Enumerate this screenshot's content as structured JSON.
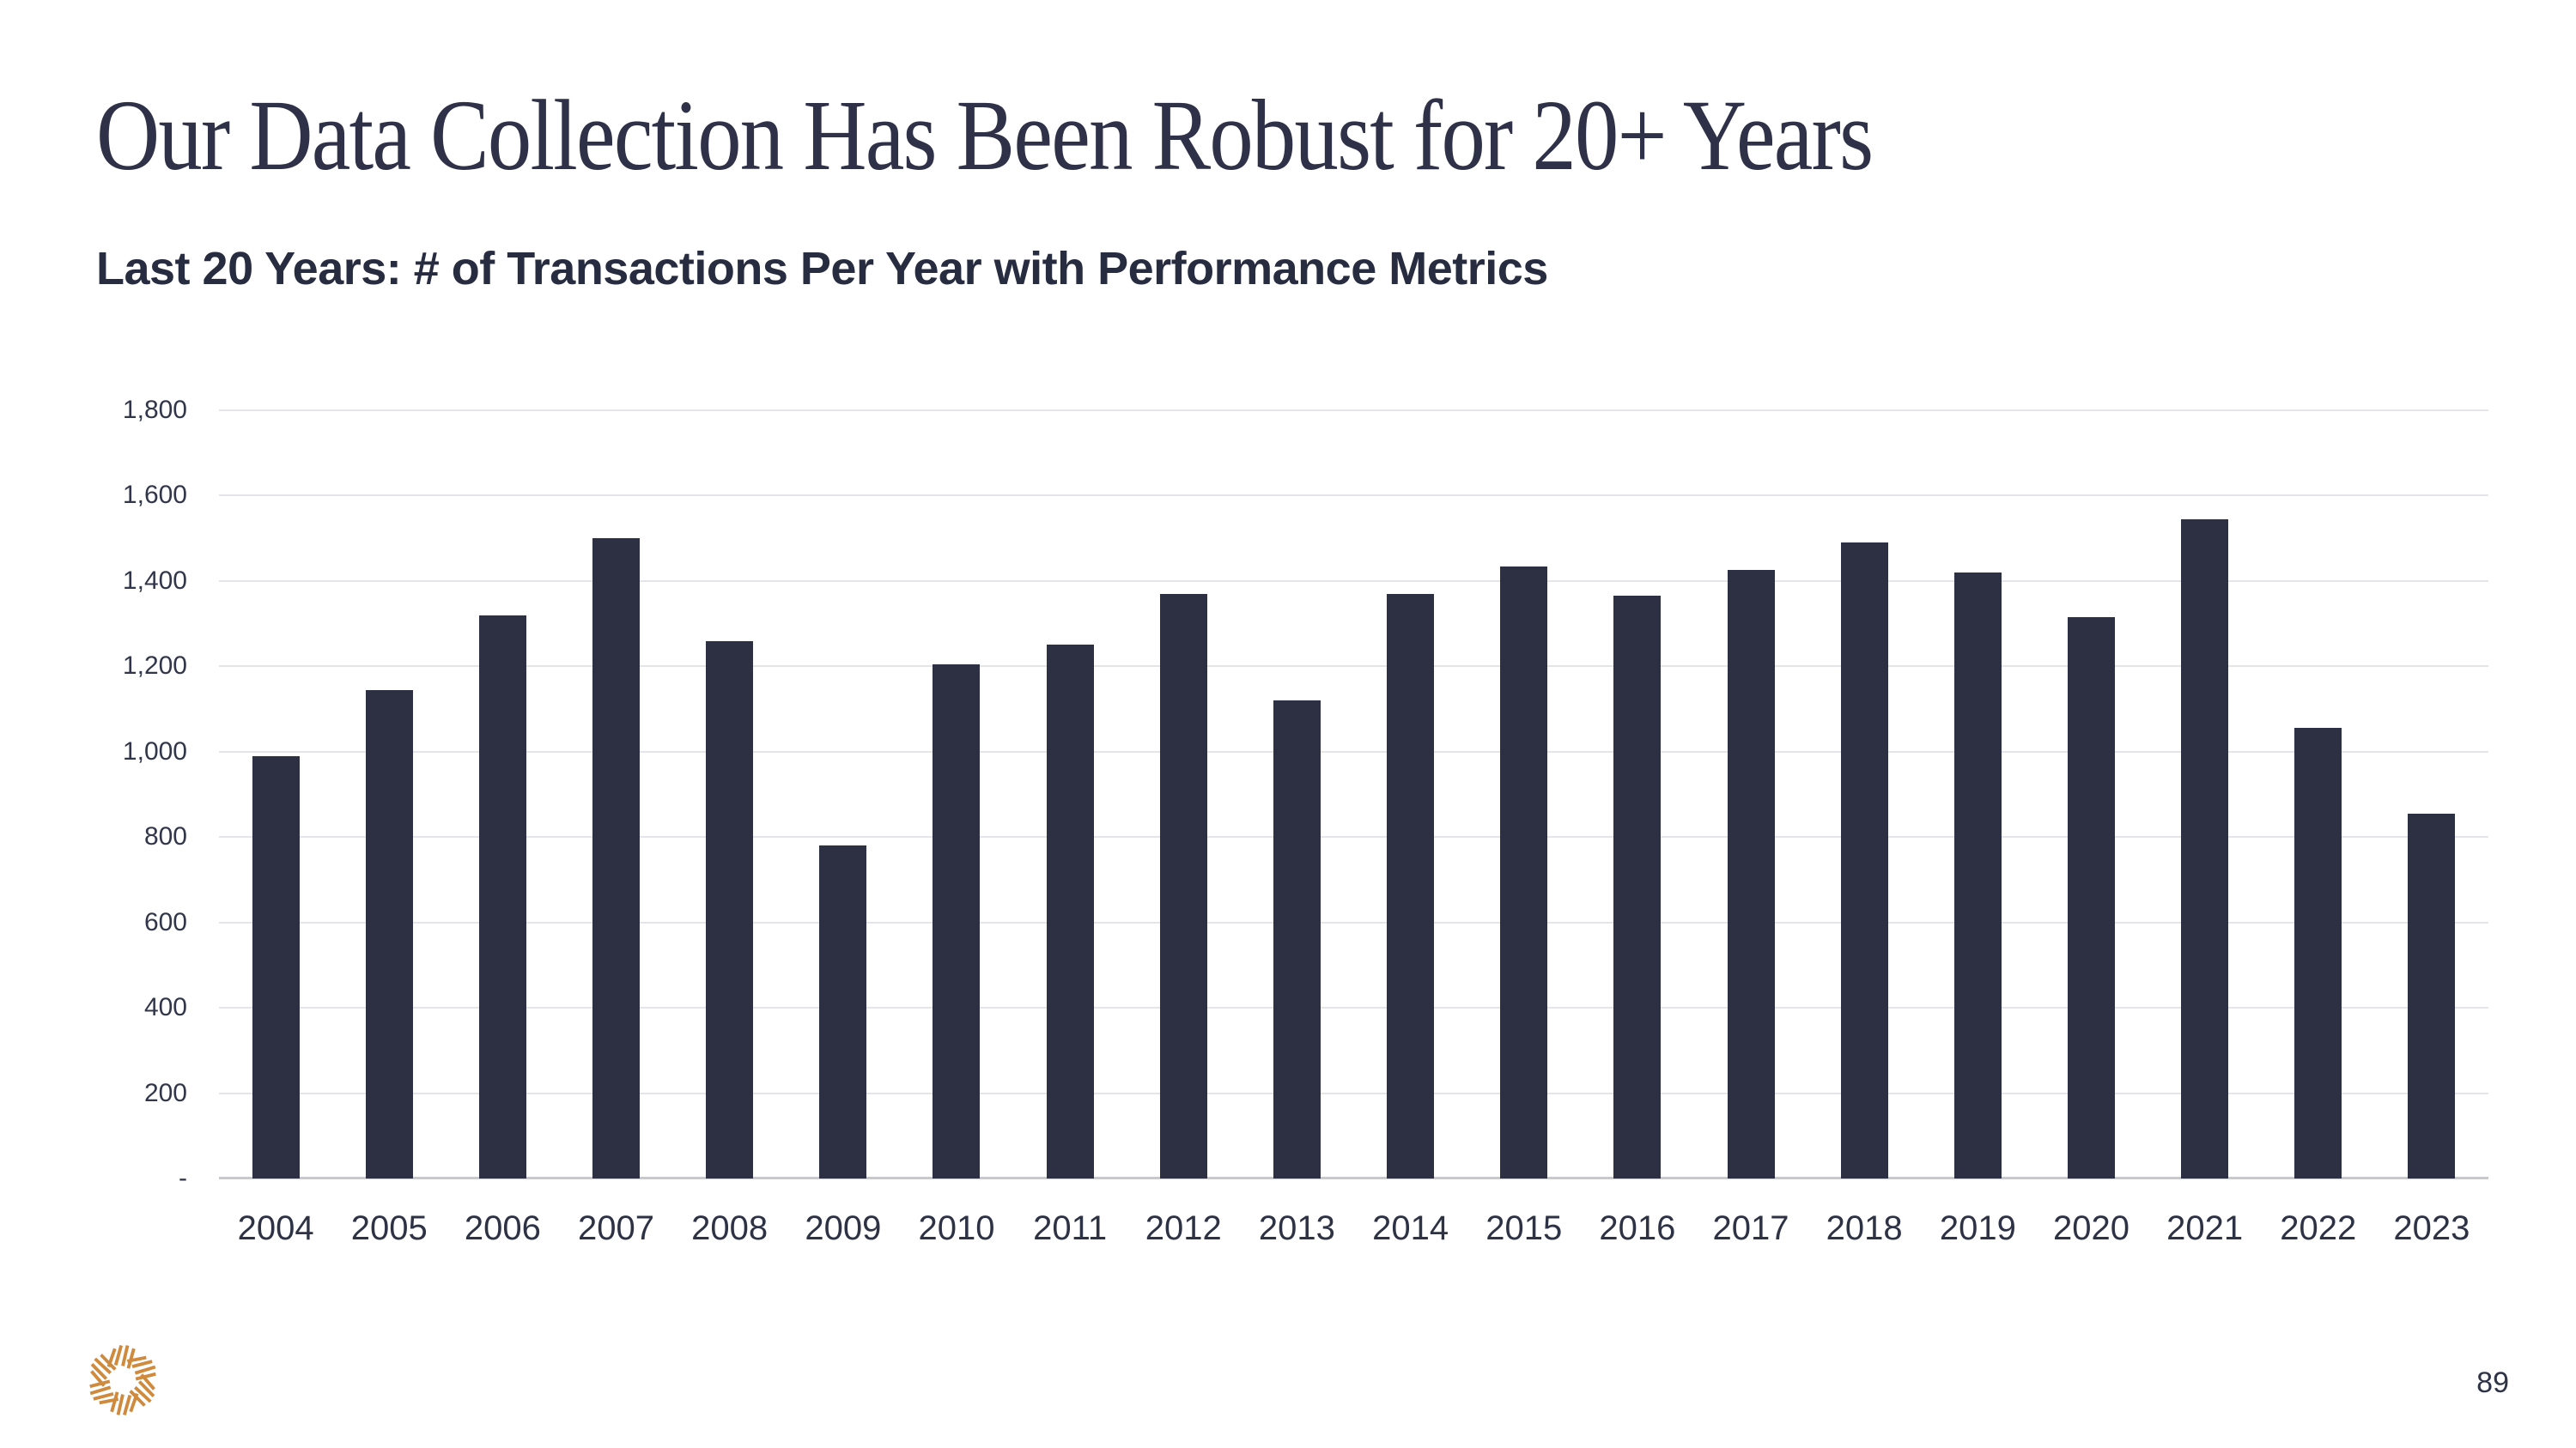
{
  "slide": {
    "title": "Our Data Collection Has Been Robust for 20+ Years",
    "subtitle": "Last 20 Years: # of Transactions Per Year with Performance Metrics",
    "page_number": "89"
  },
  "logo": {
    "name": "starburst-logo",
    "color": "#CF8A3D"
  },
  "colors": {
    "background": "#FFFFFF",
    "bar": "#2D3043",
    "title": "#2E3148",
    "subtitle": "#272C41",
    "axis_label": "#31364B",
    "gridline": "#E5E5E9",
    "baseline": "#C8C9CE",
    "logo_orange": "#CF8A3D"
  },
  "chart_data": {
    "type": "bar",
    "title": "Last 20 Years: # of Transactions Per Year with Performance Metrics",
    "categories": [
      "2004",
      "2005",
      "2006",
      "2007",
      "2008",
      "2009",
      "2010",
      "2011",
      "2012",
      "2013",
      "2014",
      "2015",
      "2016",
      "2017",
      "2018",
      "2019",
      "2020",
      "2021",
      "2022",
      "2023"
    ],
    "values": [
      990,
      1145,
      1320,
      1500,
      1260,
      780,
      1205,
      1250,
      1370,
      1120,
      1370,
      1435,
      1365,
      1425,
      1490,
      1420,
      1315,
      1545,
      1055,
      855
    ],
    "xlabel": "",
    "ylabel": "",
    "ylim": [
      0,
      1800
    ],
    "ytick_step": 200,
    "ytick_labels_bottom_to_top": [
      "-",
      "200",
      "400",
      "600",
      "800",
      "1,000",
      "1,200",
      "1,400",
      "1,600",
      "1,800"
    ],
    "grid": true,
    "legend": false,
    "bar_color": "#2D3043"
  }
}
